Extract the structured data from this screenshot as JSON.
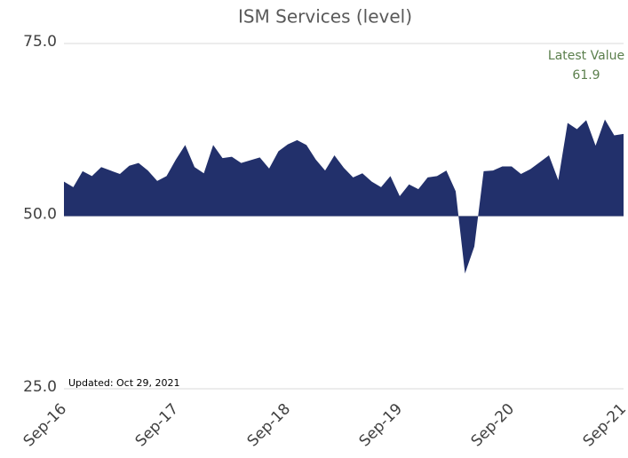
{
  "chart_data": {
    "type": "area",
    "title": "ISM Services (level)",
    "annotation_title": "Latest Value",
    "note": "Updated: Oct 29, 2021",
    "categories": [
      "Sep-16",
      null,
      null,
      null,
      null,
      null,
      null,
      null,
      null,
      null,
      null,
      null,
      "Sep-17",
      null,
      null,
      null,
      null,
      null,
      null,
      null,
      null,
      null,
      null,
      null,
      "Sep-18",
      null,
      null,
      null,
      null,
      null,
      null,
      null,
      null,
      null,
      null,
      null,
      "Sep-19",
      null,
      null,
      null,
      null,
      null,
      null,
      null,
      null,
      null,
      null,
      null,
      "Sep-20",
      null,
      null,
      null,
      null,
      null,
      null,
      null,
      null,
      null,
      null,
      null,
      "Sep-21"
    ],
    "values": [
      55.0,
      54.2,
      56.5,
      55.8,
      57.1,
      56.6,
      56.1,
      57.3,
      57.7,
      56.6,
      55.1,
      55.8,
      58.2,
      60.3,
      57.1,
      56.2,
      60.3,
      58.4,
      58.6,
      57.7,
      58.1,
      58.5,
      56.9,
      59.4,
      60.4,
      61.0,
      60.3,
      58.2,
      56.6,
      58.8,
      57.0,
      55.6,
      56.2,
      55.0,
      54.2,
      55.8,
      52.9,
      54.6,
      53.9,
      55.6,
      55.8,
      56.6,
      53.6,
      41.7,
      45.6,
      56.5,
      56.6,
      57.2,
      57.2,
      56.1,
      56.8,
      57.8,
      58.8,
      55.2,
      63.5,
      62.6,
      63.9,
      60.2,
      64.0,
      61.7,
      61.9
    ],
    "color": "#22306b",
    "baseline": 50,
    "ylim": [
      25,
      75
    ],
    "yticks": [
      {
        "value": 25,
        "label": "25.0"
      },
      {
        "value": 50,
        "label": "50.0"
      },
      {
        "value": 75,
        "label": "75.0"
      }
    ],
    "grid": true
  }
}
